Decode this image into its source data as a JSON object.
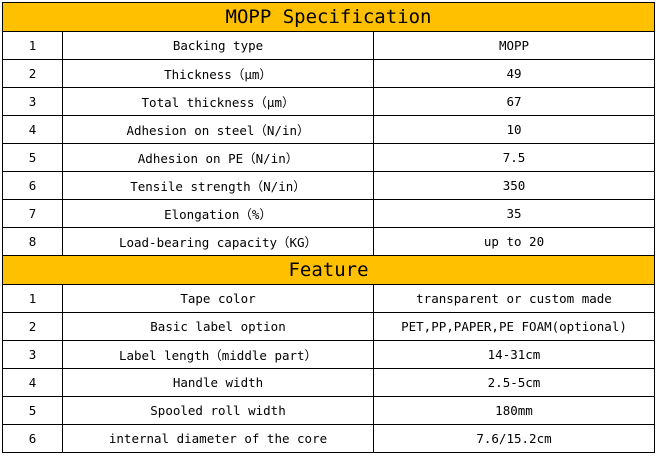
{
  "spec": {
    "title": "MOPP Specification",
    "rows": [
      [
        "1",
        "Backing type",
        "MOPP"
      ],
      [
        "2",
        "Thickness（μm）",
        "49"
      ],
      [
        "3",
        "Total thickness（μm）",
        "67"
      ],
      [
        "4",
        "Adhesion on steel（N/in）",
        "10"
      ],
      [
        "5",
        "Adhesion on PE（N/in）",
        "7.5"
      ],
      [
        "6",
        "Tensile strength（N/in）",
        "350"
      ],
      [
        "7",
        "Elongation（%）",
        "35"
      ],
      [
        "8",
        "Load-bearing capacity（KG）",
        "up to 20"
      ]
    ]
  },
  "feature": {
    "title": "Feature",
    "rows": [
      [
        "1",
        "Tape color",
        "transparent or custom made"
      ],
      [
        "2",
        "Basic label option",
        "PET,PP,PAPER,PE FOAM(optional)"
      ],
      [
        "3",
        "Label length（middle part）",
        "14-31cm"
      ],
      [
        "4",
        "Handle width",
        "2.5-5cm"
      ],
      [
        "5",
        "Spooled roll width",
        "180mm"
      ],
      [
        "6",
        "internal diameter of the core",
        "7.6/15.2cm"
      ]
    ]
  }
}
